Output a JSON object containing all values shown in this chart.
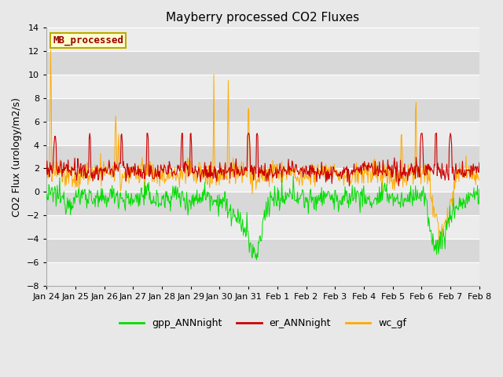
{
  "title": "Mayberry processed CO2 Fluxes",
  "ylabel": "CO2 Flux (urology/m2/s)",
  "ylim": [
    -8,
    14
  ],
  "yticks": [
    -8,
    -6,
    -4,
    -2,
    0,
    2,
    4,
    6,
    8,
    10,
    12,
    14
  ],
  "bg_color": "#e0e0e0",
  "plot_bg": "#e0e0e0",
  "band_light": "#ebebeb",
  "band_dark": "#d8d8d8",
  "grid_color": "#cccccc",
  "line_colors": {
    "gpp": "#00dd00",
    "er": "#cc0000",
    "wc": "#ffaa00"
  },
  "legend_labels": [
    "gpp_ANNnight",
    "er_ANNnight",
    "wc_gf"
  ],
  "box_label": "MB_processed",
  "box_facecolor": "#ffffcc",
  "box_edgecolor": "#bbaa00",
  "box_textcolor": "#990000",
  "n_points": 720,
  "date_labels": [
    "Jan 24",
    "Jan 25",
    "Jan 26",
    "Jan 27",
    "Jan 28",
    "Jan 29",
    "Jan 30",
    "Jan 31",
    "Feb 1",
    "Feb 2",
    "Feb 3",
    "Feb 4",
    "Feb 5",
    "Feb 6",
    "Feb 7",
    "Feb 8"
  ],
  "title_fontsize": 11,
  "axis_fontsize": 9,
  "tick_fontsize": 8,
  "legend_fontsize": 9
}
